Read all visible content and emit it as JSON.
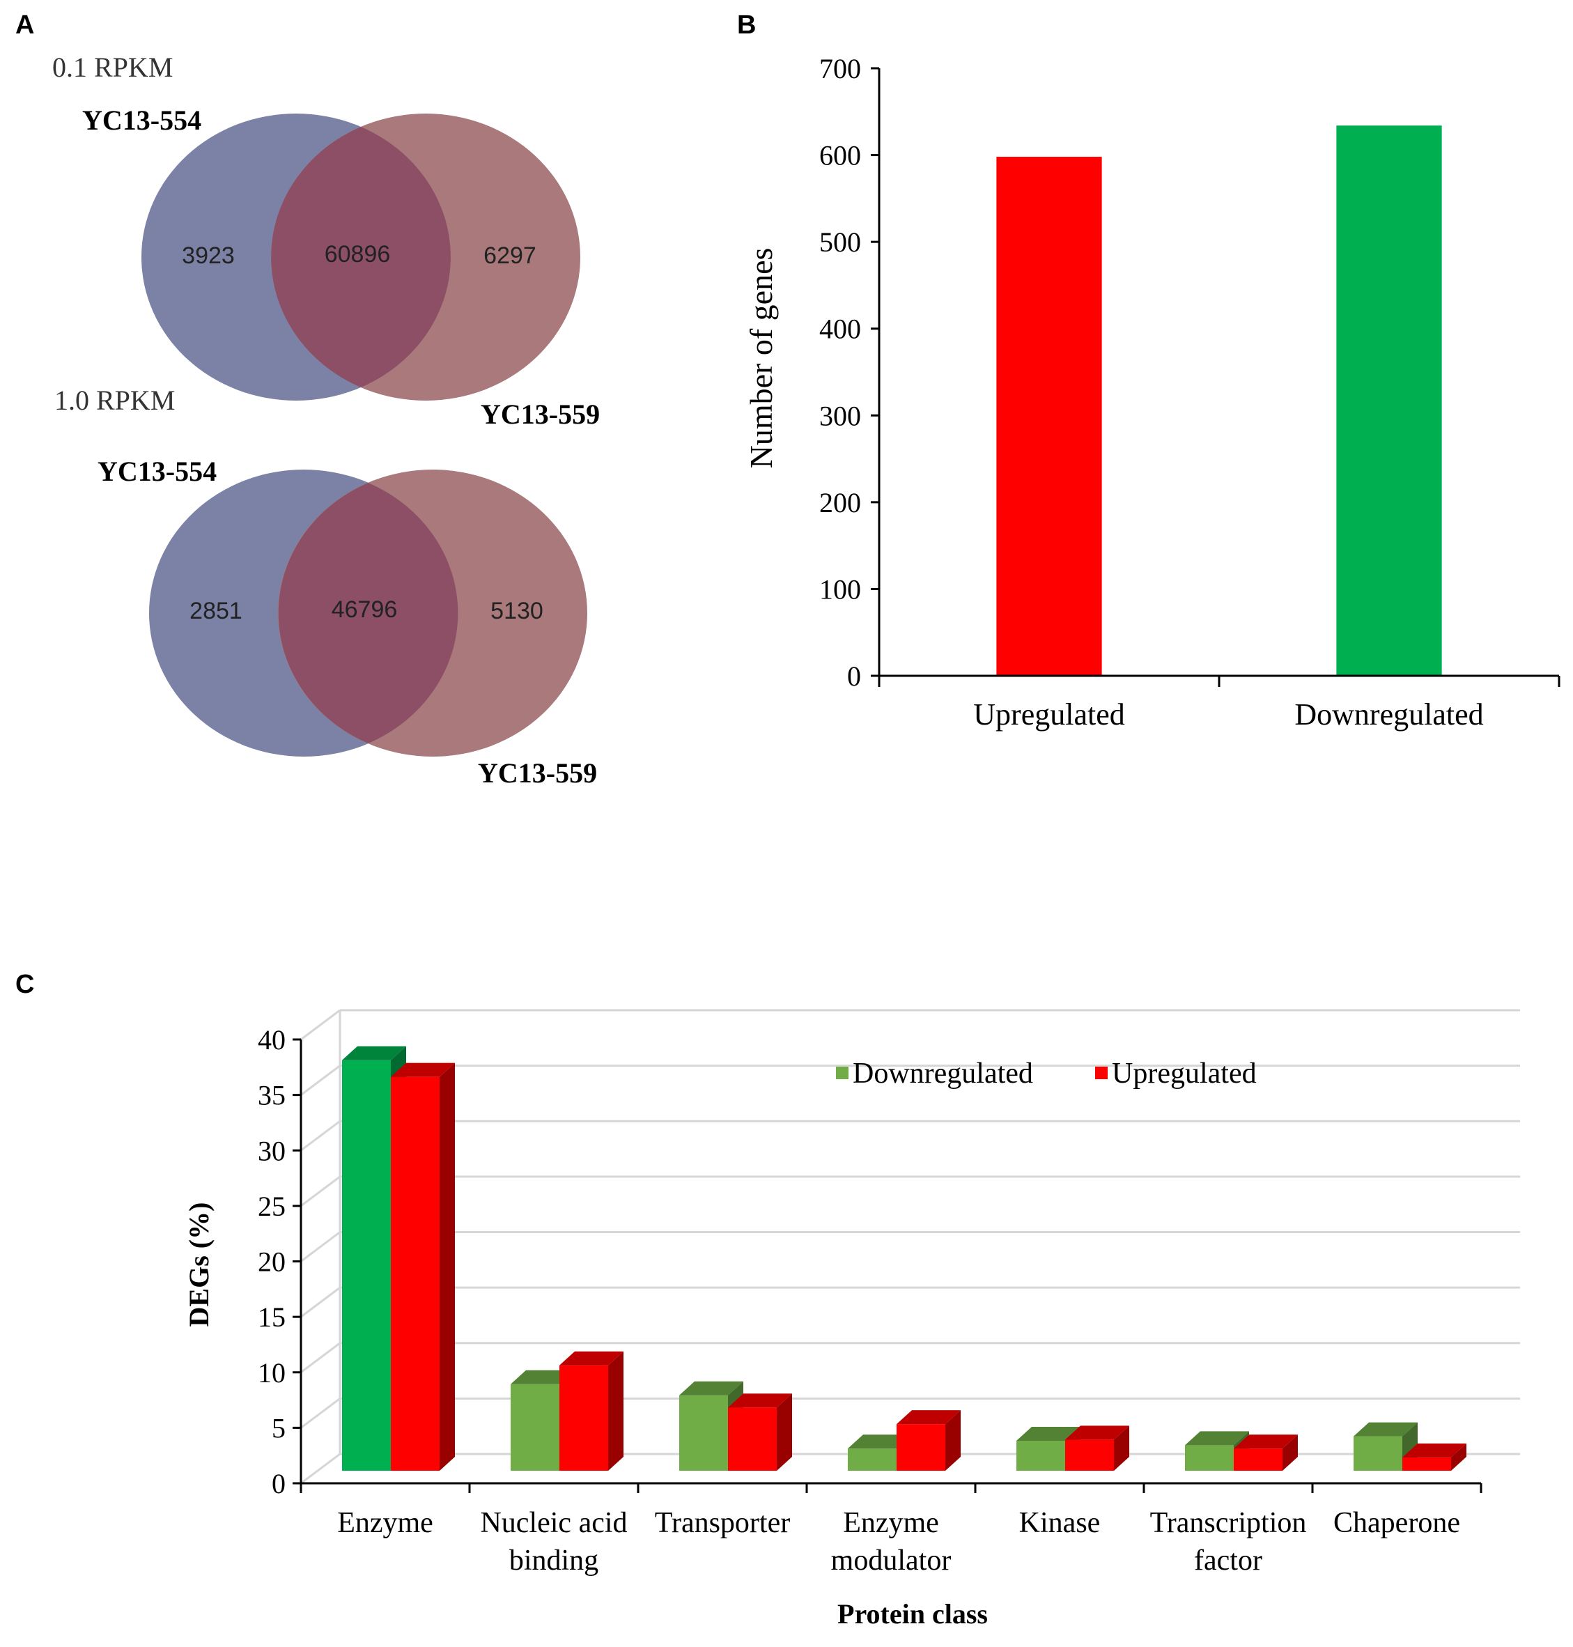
{
  "panels": {
    "a": "A",
    "b": "B",
    "c": "C"
  },
  "venn": [
    {
      "threshold": "0.1 RPKM",
      "left_label": "YC13-554",
      "right_label": "YC13-559",
      "left_only": "3923",
      "both": "60896",
      "right_only": "6297"
    },
    {
      "threshold": "1.0 RPKM",
      "left_label": "YC13-554",
      "right_label": "YC13-559",
      "left_only": "2851",
      "both": "46796",
      "right_only": "5130"
    }
  ],
  "colors": {
    "venn_left": "#7c82a6",
    "venn_right": "#a9797c",
    "venn_overlap": "#8c4f66",
    "up_red": "#ff0000",
    "down_green_b": "#00b050",
    "down_green_c": "#70ad47",
    "enzyme_green": "#00b050"
  },
  "chart_data": [
    {
      "type": "bar",
      "panel": "B",
      "categories": [
        "Upregulated",
        "Downregulated"
      ],
      "values": [
        598,
        634
      ],
      "colors": [
        "#ff0000",
        "#00b050"
      ],
      "ylabel": "Number of genes",
      "ylim": [
        0,
        700
      ],
      "yticks": [
        "0",
        "100",
        "200",
        "300",
        "400",
        "500",
        "600",
        "700"
      ]
    },
    {
      "type": "bar",
      "panel": "C",
      "style": "3d-clustered",
      "xlabel": "Protein class",
      "ylabel": "DEGs (%)",
      "ylim": [
        0,
        40
      ],
      "yticks": [
        "0",
        "5",
        "10",
        "15",
        "20",
        "25",
        "30",
        "35",
        "40"
      ],
      "categories": [
        [
          "Enzyme"
        ],
        [
          "Nucleic acid",
          "binding"
        ],
        [
          "Transporter"
        ],
        [
          "Enzyme",
          "modulator"
        ],
        [
          "Kinase"
        ],
        [
          "Transcription",
          "factor"
        ],
        [
          "Chaperone"
        ]
      ],
      "legend_position": "top-center",
      "series": [
        {
          "name": "Downregulated",
          "values": [
            37,
            7.8,
            6.8,
            2.0,
            2.7,
            2.3,
            3.1
          ]
        },
        {
          "name": "Upregulated",
          "values": [
            35.5,
            9.5,
            5.7,
            4.2,
            2.8,
            2.0,
            1.2
          ]
        }
      ]
    }
  ]
}
